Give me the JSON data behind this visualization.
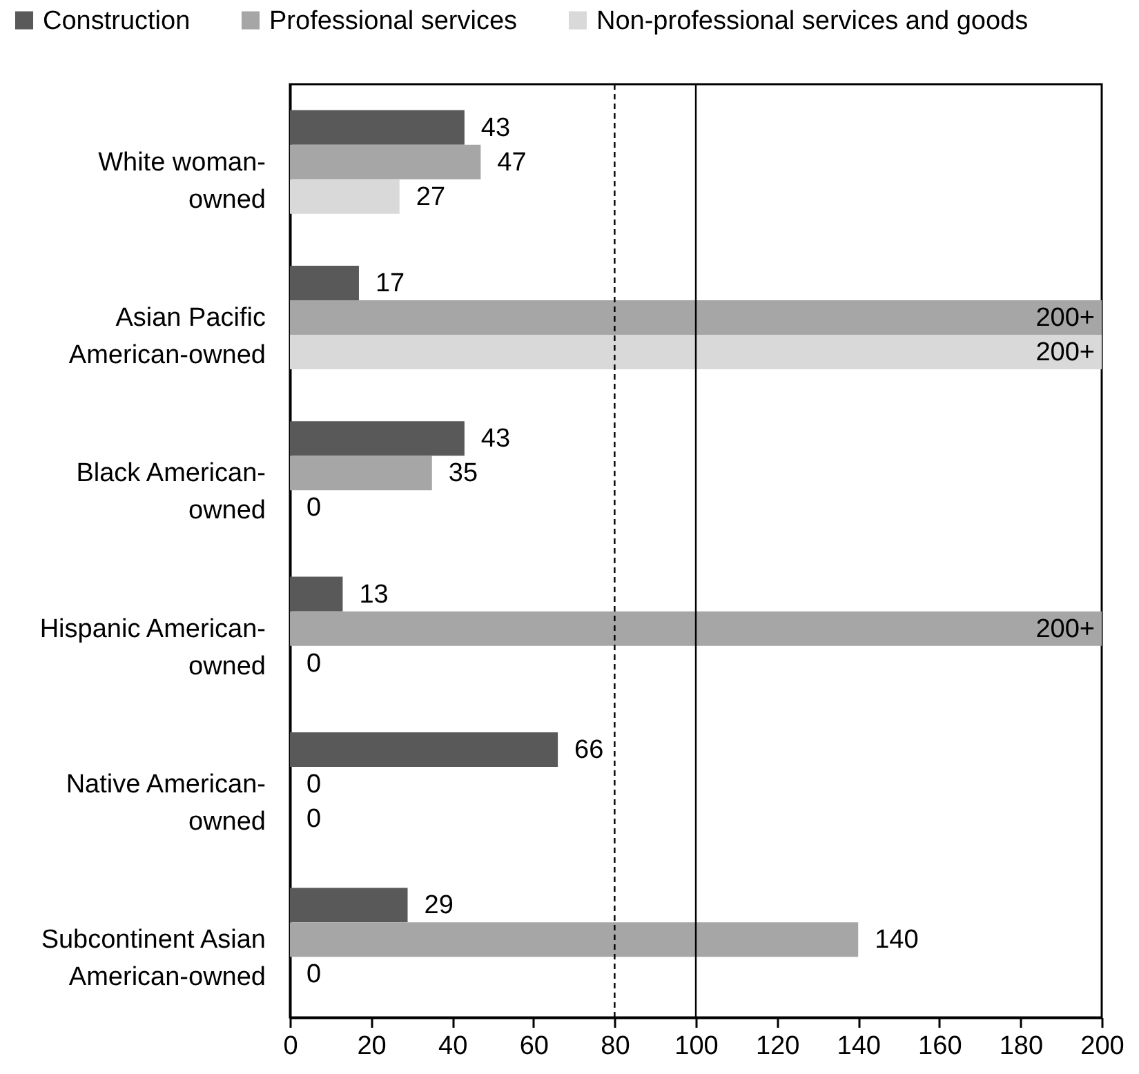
{
  "chart_data": {
    "type": "bar",
    "orientation": "horizontal",
    "legend": "top",
    "categories": [
      "White woman-\nowned",
      "Asian Pacific\nAmerican-owned",
      "Black American-\nowned",
      "Hispanic American-\nowned",
      "Native American-\nowned",
      "Subcontinent Asian\nAmerican-owned"
    ],
    "series": [
      {
        "name": "Construction",
        "color": "#595959",
        "values": [
          43,
          17,
          43,
          13,
          66,
          29
        ],
        "value_labels": [
          "43",
          "17",
          "43",
          "13",
          "66",
          "29"
        ]
      },
      {
        "name": "Professional services",
        "color": "#a6a6a6",
        "values": [
          47,
          200,
          35,
          200,
          0,
          140
        ],
        "value_labels": [
          "47",
          "200+",
          "35",
          "200+",
          "0",
          "140"
        ]
      },
      {
        "name": "Non-professional services and goods",
        "color": "#d9d9d9",
        "values": [
          27,
          200,
          0,
          0,
          0,
          0
        ],
        "value_labels": [
          "27",
          "200+",
          "0",
          "0",
          "0",
          "0"
        ]
      }
    ],
    "xlim": [
      0,
      200
    ],
    "xticks": [
      0,
      20,
      40,
      60,
      80,
      100,
      120,
      140,
      160,
      180,
      200
    ],
    "ref_lines": [
      {
        "axis": "x",
        "value": 80,
        "line_style": "dashed",
        "color": "#000000"
      },
      {
        "axis": "x",
        "value": 100,
        "line_style": "solid",
        "color": "#000000"
      }
    ]
  }
}
